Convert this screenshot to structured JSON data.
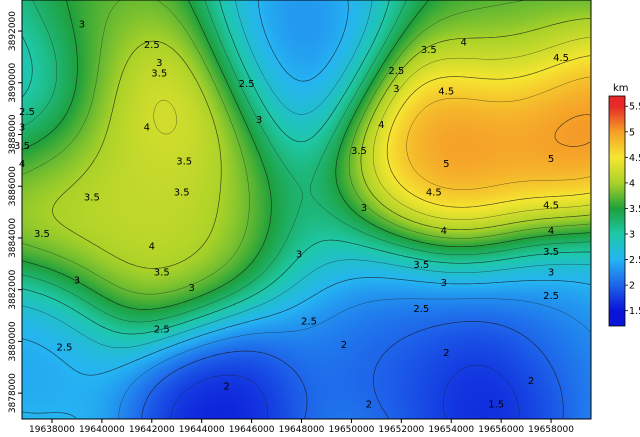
{
  "chart_data": {
    "type": "heatmap",
    "title": "",
    "xlabel": "",
    "ylabel": "",
    "xlim": [
      19636800,
      19659600
    ],
    "ylim": [
      3877000,
      3893200
    ],
    "x_ticks": [
      "19638000",
      "19640000",
      "19642000",
      "19644000",
      "19646000",
      "19648000",
      "19650000",
      "19652000",
      "19654000",
      "19656000",
      "19658000"
    ],
    "x_tick_values": [
      19638000,
      19640000,
      19642000,
      19644000,
      19646000,
      19648000,
      19650000,
      19652000,
      19654000,
      19656000,
      19658000
    ],
    "y_ticks": [
      "3878000",
      "3880000",
      "3882000",
      "3884000",
      "3886000",
      "3888000",
      "3890000",
      "3892000"
    ],
    "y_tick_values": [
      3878000,
      3880000,
      3882000,
      3884000,
      3886000,
      3888000,
      3890000,
      3892000
    ],
    "colorbar": {
      "unit": "km",
      "range": [
        1.2,
        5.7
      ],
      "tick_labels": [
        "1.5",
        "2",
        "2.5",
        "3",
        "3.5",
        "4",
        "4.5",
        "5",
        "5.5"
      ],
      "tick_values": [
        1.5,
        2,
        2.5,
        3,
        3.5,
        4,
        4.5,
        5,
        5.5
      ],
      "colors": [
        "#0a14d8",
        "#1e64ea",
        "#25b4f2",
        "#1ec8a8",
        "#1ea03c",
        "#aad228",
        "#f5e630",
        "#f5a028",
        "#e62828"
      ]
    },
    "features": [
      {
        "kind": "high",
        "x": 19654000,
        "y": 3888000,
        "value": 5.4
      },
      {
        "kind": "high",
        "x": 19659200,
        "y": 3888700,
        "value": 5.5
      },
      {
        "kind": "high",
        "x": 19642300,
        "y": 3889400,
        "value": 4.8
      },
      {
        "kind": "high",
        "x": 19637400,
        "y": 3886000,
        "value": 4.4
      },
      {
        "kind": "high",
        "x": 19642200,
        "y": 3883900,
        "value": 4.3
      },
      {
        "kind": "high",
        "x": 19641500,
        "y": 3886200,
        "value": 4.0
      },
      {
        "kind": "high",
        "x": 19640000,
        "y": 3892500,
        "value": 3.8
      },
      {
        "kind": "high",
        "x": 19656500,
        "y": 3892500,
        "value": 3.7
      },
      {
        "kind": "low",
        "x": 19644600,
        "y": 3877300,
        "value": 1.3
      },
      {
        "kind": "low",
        "x": 19655600,
        "y": 3877700,
        "value": 1.3
      },
      {
        "kind": "low",
        "x": 19647500,
        "y": 3891700,
        "value": 2.1
      },
      {
        "kind": "low",
        "x": 19636800,
        "y": 3889500,
        "value": 2.3
      },
      {
        "kind": "low",
        "x": 19651300,
        "y": 3879000,
        "value": 1.9
      },
      {
        "kind": "low",
        "x": 19637000,
        "y": 3879500,
        "value": 2.3
      },
      {
        "kind": "low",
        "x": 19659000,
        "y": 3879500,
        "value": 2.2
      }
    ],
    "contour_labels": [
      {
        "text": "3",
        "x": 19639200,
        "y": 3892300
      },
      {
        "text": "2.5",
        "x": 19642000,
        "y": 3891500
      },
      {
        "text": "3",
        "x": 19642300,
        "y": 3890800
      },
      {
        "text": "3.5",
        "x": 19642300,
        "y": 3890400
      },
      {
        "text": "2.5",
        "x": 19645800,
        "y": 3890000
      },
      {
        "text": "2.5",
        "x": 19651800,
        "y": 3890500
      },
      {
        "text": "3",
        "x": 19651800,
        "y": 3889800
      },
      {
        "text": "3.5",
        "x": 19653100,
        "y": 3891300
      },
      {
        "text": "4",
        "x": 19654500,
        "y": 3891600
      },
      {
        "text": "4.5",
        "x": 19658400,
        "y": 3891000
      },
      {
        "text": "4.5",
        "x": 19653800,
        "y": 3889700
      },
      {
        "text": "2.5",
        "x": 19637000,
        "y": 3888900
      },
      {
        "text": "3",
        "x": 19636800,
        "y": 3888300
      },
      {
        "text": "3.5",
        "x": 19636800,
        "y": 3887600
      },
      {
        "text": "4",
        "x": 19636800,
        "y": 3886900
      },
      {
        "text": "4",
        "x": 19641800,
        "y": 3888300
      },
      {
        "text": "3",
        "x": 19646300,
        "y": 3888600
      },
      {
        "text": "3.5",
        "x": 19643300,
        "y": 3887000
      },
      {
        "text": "3.5",
        "x": 19639600,
        "y": 3885600
      },
      {
        "text": "3.5",
        "x": 19643200,
        "y": 3885800
      },
      {
        "text": "3.5",
        "x": 19650300,
        "y": 3887400
      },
      {
        "text": "4",
        "x": 19651200,
        "y": 3888400
      },
      {
        "text": "5",
        "x": 19653800,
        "y": 3886900
      },
      {
        "text": "4.5",
        "x": 19653300,
        "y": 3885800
      },
      {
        "text": "5",
        "x": 19658000,
        "y": 3887100
      },
      {
        "text": "4.5",
        "x": 19658000,
        "y": 3885300
      },
      {
        "text": "3",
        "x": 19650500,
        "y": 3885200
      },
      {
        "text": "3.5",
        "x": 19637600,
        "y": 3884200
      },
      {
        "text": "4",
        "x": 19642000,
        "y": 3883700
      },
      {
        "text": "3",
        "x": 19647900,
        "y": 3883400
      },
      {
        "text": "4",
        "x": 19653700,
        "y": 3884300
      },
      {
        "text": "3.5",
        "x": 19652800,
        "y": 3883000
      },
      {
        "text": "4",
        "x": 19658000,
        "y": 3884300
      },
      {
        "text": "3.5",
        "x": 19658000,
        "y": 3883500
      },
      {
        "text": "3",
        "x": 19639000,
        "y": 3882400
      },
      {
        "text": "3.5",
        "x": 19642400,
        "y": 3882700
      },
      {
        "text": "3",
        "x": 19643600,
        "y": 3882100
      },
      {
        "text": "3",
        "x": 19653700,
        "y": 3882300
      },
      {
        "text": "3",
        "x": 19658000,
        "y": 3882700
      },
      {
        "text": "2.5",
        "x": 19658000,
        "y": 3881800
      },
      {
        "text": "2.5",
        "x": 19652800,
        "y": 3881300
      },
      {
        "text": "2.5",
        "x": 19648300,
        "y": 3880800
      },
      {
        "text": "2.5",
        "x": 19642400,
        "y": 3880500
      },
      {
        "text": "2.5",
        "x": 19638500,
        "y": 3879800
      },
      {
        "text": "2",
        "x": 19649700,
        "y": 3879900
      },
      {
        "text": "2",
        "x": 19653800,
        "y": 3879600
      },
      {
        "text": "2",
        "x": 19645000,
        "y": 3878300
      },
      {
        "text": "2",
        "x": 19650700,
        "y": 3877600
      },
      {
        "text": "2",
        "x": 19657200,
        "y": 3878500
      },
      {
        "text": "1.5",
        "x": 19655800,
        "y": 3877600
      }
    ]
  }
}
